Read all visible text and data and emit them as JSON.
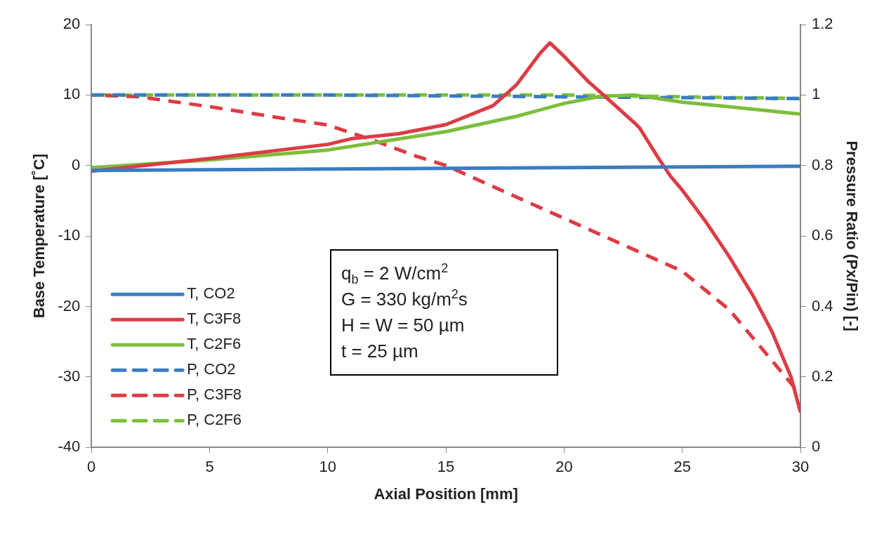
{
  "chart_data": {
    "type": "line",
    "xlabel": "Axial Position [mm]",
    "ylabel": "Base Temperature [˚C]",
    "y2label": "Pressure Ratio (Px/Pin) [-]",
    "xlim": [
      0,
      30
    ],
    "xticks": [
      0,
      5,
      10,
      15,
      20,
      25,
      30
    ],
    "ylim": [
      -40,
      20
    ],
    "yticks": [
      -40,
      -30,
      -20,
      -10,
      0,
      10,
      20
    ],
    "y2lim": [
      0,
      1.2
    ],
    "y2ticks": [
      0,
      0.2,
      0.4,
      0.6,
      0.8,
      1,
      1.2
    ],
    "grid": false,
    "legend": "bottom left",
    "marker": "none",
    "annotations": [
      "q$_{b}$ = 2 W/cm$^{2}$",
      "G = 330 kg/m$^{2}$s",
      "H = W = 50 µm",
      "t = 25 µm"
    ],
    "series": [
      {
        "name": "T, CO2",
        "color": "#3a7cc4",
        "line_style": "solid",
        "x": [
          0,
          10,
          20,
          30
        ],
        "values": [
          -0.7,
          -0.5,
          -0.3,
          -0.1
        ]
      },
      {
        "name": "T, C3F8",
        "color": "#dc3c44",
        "line_style": "solid",
        "x": [
          0,
          5,
          10,
          11,
          13,
          15,
          17,
          18,
          19,
          19.4,
          20,
          21,
          22,
          23,
          23.2,
          24,
          24.5,
          25,
          26,
          27,
          28,
          28.8,
          29.6,
          30
        ],
        "values": [
          -0.8,
          1.0,
          3.0,
          3.8,
          4.5,
          5.8,
          8.5,
          11.5,
          16,
          17.4,
          15.5,
          12,
          9,
          6,
          5.3,
          1,
          -1.5,
          -3.5,
          -8,
          -13,
          -18.5,
          -23.6,
          -30,
          -35
        ]
      },
      {
        "name": "T, C2F6",
        "color": "#7cbe3c",
        "line_style": "solid",
        "x": [
          0,
          5,
          10,
          15,
          18,
          20,
          21.5,
          23,
          25,
          28,
          30
        ],
        "values": [
          -0.3,
          0.8,
          2.2,
          4.8,
          7,
          8.8,
          9.8,
          10,
          9,
          8,
          7.3
        ]
      },
      {
        "name": "P, CO2",
        "color": "#3a7cc4",
        "line_style": "dashed",
        "axis": "y2",
        "x": [
          0,
          10,
          20,
          30
        ],
        "values": [
          1.0,
          1.0,
          0.995,
          0.99
        ]
      },
      {
        "name": "P, C3F8",
        "color": "#dc3c44",
        "line_style": "dashed",
        "axis": "y2",
        "x": [
          0,
          2,
          5,
          8,
          10,
          12,
          13.8,
          15,
          20,
          25,
          27,
          29,
          30
        ],
        "values": [
          1.0,
          0.995,
          0.967,
          0.935,
          0.915,
          0.87,
          0.825,
          0.8,
          0.65,
          0.5,
          0.39,
          0.23,
          0.15
        ]
      },
      {
        "name": "P, C2F6",
        "color": "#7cbe3c",
        "line_style": "dashed",
        "axis": "y2",
        "x": [
          0,
          10,
          20,
          30
        ],
        "values": [
          1.0,
          1.0,
          1.0,
          0.99
        ]
      }
    ]
  }
}
